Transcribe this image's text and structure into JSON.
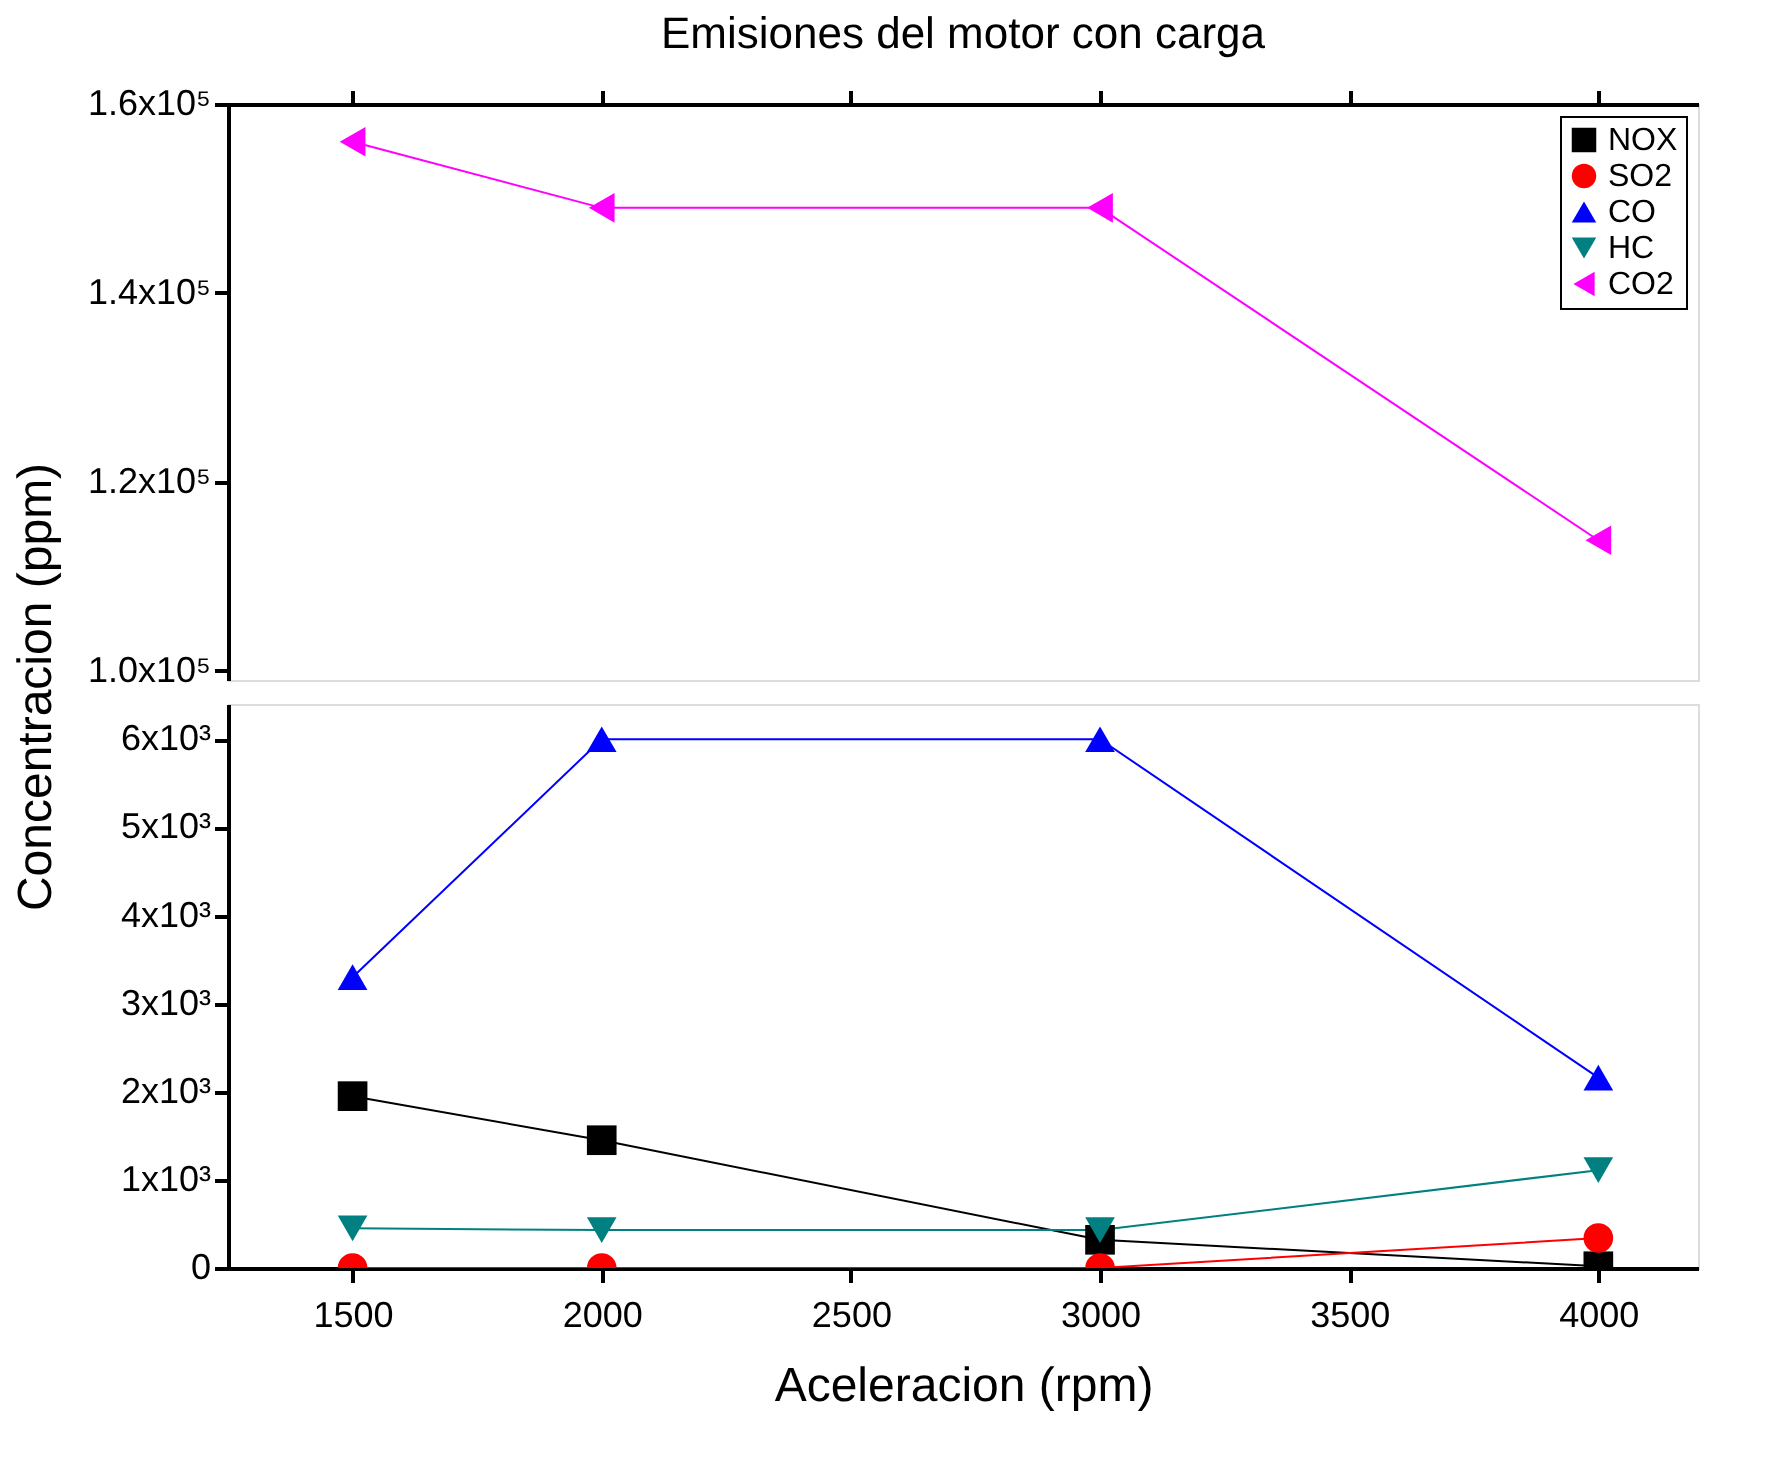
{
  "chart_data": [
    {
      "type": "line",
      "title": "Emisiones del motor con carga",
      "x": [
        1500,
        2000,
        3000,
        4000
      ],
      "series": [
        {
          "name": "NOX",
          "color": "#000000",
          "marker": "square",
          "values": [
            null,
            null,
            null,
            null
          ]
        },
        {
          "name": "SO2",
          "color": "#ff0000",
          "marker": "circle",
          "values": [
            null,
            null,
            null,
            null
          ]
        },
        {
          "name": "CO",
          "color": "#0000ff",
          "marker": "triangle-up",
          "values": [
            null,
            null,
            null,
            null
          ]
        },
        {
          "name": "HC",
          "color": "#008080",
          "marker": "triangle-down",
          "values": [
            null,
            null,
            null,
            null
          ]
        },
        {
          "name": "CO2",
          "color": "#ff00ff",
          "marker": "triangle-left",
          "values": [
            156000,
            149000,
            149000,
            113800
          ]
        }
      ],
      "xlim": [
        1250,
        4200
      ],
      "xticks": [
        {
          "value": 1500,
          "label": null
        },
        {
          "value": 2000,
          "label": null
        },
        {
          "value": 2500,
          "label": null
        },
        {
          "value": 3000,
          "label": null
        },
        {
          "value": 3500,
          "label": null
        },
        {
          "value": 4000,
          "label": null
        }
      ],
      "ylim": [
        99000,
        160000
      ],
      "yticks": [
        {
          "value": 100000,
          "label": "1.0x10⁵"
        },
        {
          "value": 120000,
          "label": "1.2x10⁵"
        },
        {
          "value": 140000,
          "label": "1.4x10⁵"
        },
        {
          "value": 160000,
          "label": "1.6x10⁵"
        }
      ],
      "tick_labels": "y",
      "legend": "top right",
      "grid": false
    },
    {
      "type": "line",
      "x": [
        1500,
        2000,
        3000,
        4000
      ],
      "xlabel": "Aceleracion (rpm)",
      "ylabel": "Concentracion (ppm)",
      "series": [
        {
          "color": "#000000",
          "marker": "square",
          "values": [
            1950,
            1450,
            320,
            20
          ]
        },
        {
          "color": "#ff0000",
          "marker": "circle",
          "values": [
            0,
            0,
            0,
            340
          ]
        },
        {
          "color": "#0000ff",
          "marker": "triangle-up",
          "values": [
            3300,
            6000,
            6000,
            2160
          ]
        },
        {
          "color": "#008080",
          "marker": "triangle-down",
          "values": [
            450,
            430,
            430,
            1110
          ]
        }
      ],
      "xlim": [
        1250,
        4200
      ],
      "xticks": [
        1500,
        2000,
        2500,
        3000,
        3500,
        4000
      ],
      "ylim": [
        0,
        6400
      ],
      "yticks": [
        0,
        {
          "value": 1000,
          "label": "1x10³"
        },
        {
          "value": 2000,
          "label": "2x10³"
        },
        {
          "value": 3000,
          "label": "3x10³"
        },
        {
          "value": 4000,
          "label": "4x10³"
        },
        {
          "value": 5000,
          "label": "5x10³"
        },
        {
          "value": 6000,
          "label": "6x10³"
        }
      ],
      "legend": false,
      "grid": false
    }
  ]
}
